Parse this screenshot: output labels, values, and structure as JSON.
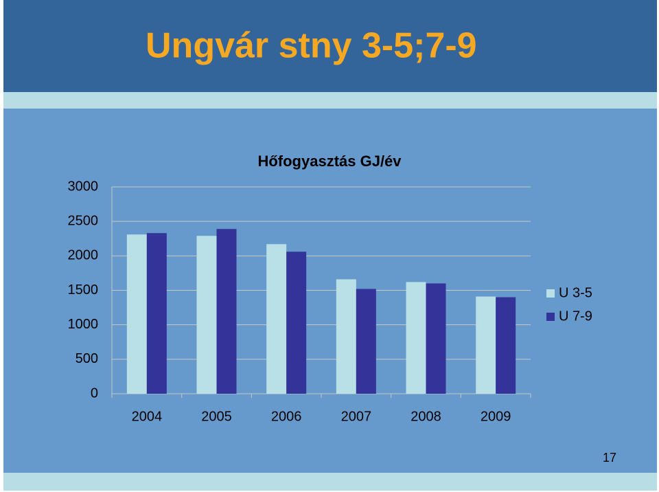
{
  "slide": {
    "title": "Ungvár stny 3-5;7-9",
    "page_number": "17"
  },
  "chart_data": {
    "type": "bar",
    "title": "Hőfogyasztás GJ/év",
    "categories": [
      "2004",
      "2005",
      "2006",
      "2007",
      "2008",
      "2009"
    ],
    "series": [
      {
        "name": "U 3-5",
        "color": "#b8e0e6",
        "values": [
          2310,
          2290,
          2170,
          1660,
          1620,
          1410
        ]
      },
      {
        "name": "U 7-9",
        "color": "#333399",
        "values": [
          2330,
          2390,
          2060,
          1520,
          1600,
          1400
        ]
      }
    ],
    "ylim": [
      0,
      3000
    ],
    "yticks": [
      0,
      500,
      1000,
      1500,
      2000,
      2500,
      3000
    ],
    "grid": true,
    "legend": "right"
  }
}
